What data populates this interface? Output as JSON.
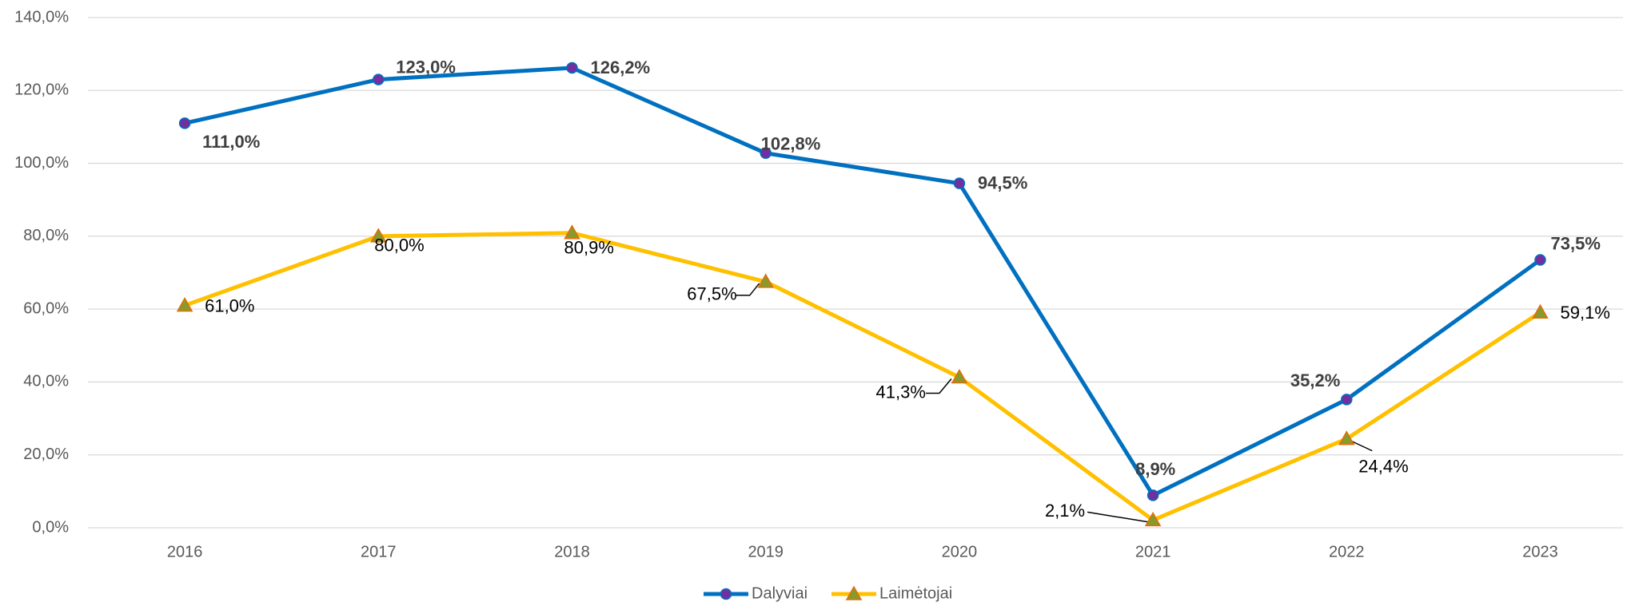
{
  "chart_data": {
    "type": "line",
    "categories": [
      "2016",
      "2017",
      "2018",
      "2019",
      "2020",
      "2021",
      "2022",
      "2023"
    ],
    "series": [
      {
        "name": "Dalyviai",
        "color": "#0070c0",
        "marker_color": "#7030a0",
        "marker": "circle",
        "values": [
          111.0,
          123.0,
          126.2,
          102.8,
          94.5,
          8.9,
          35.2,
          73.5
        ],
        "value_labels": [
          "111,0%",
          "123,0%",
          "126,2%",
          "102,8%",
          "94,5%",
          "8,9%",
          "35,2%",
          "73,5%"
        ]
      },
      {
        "name": "Laimėtojai",
        "color": "#ffc000",
        "marker_color": "#8a9a2a",
        "marker": "triangle",
        "values": [
          61.0,
          80.0,
          80.9,
          67.5,
          41.3,
          2.1,
          24.4,
          59.1
        ],
        "value_labels": [
          "61,0%",
          "80,0%",
          "80,9%",
          "67,5%",
          "41,3%",
          "2,1%",
          "24,4%",
          "59,1%"
        ]
      }
    ],
    "ylim": [
      0,
      140
    ],
    "yticks": [
      {
        "value": 0,
        "label": "0,0%"
      },
      {
        "value": 20,
        "label": "20,0%"
      },
      {
        "value": 40,
        "label": "40,0%"
      },
      {
        "value": 60,
        "label": "60,0%"
      },
      {
        "value": 80,
        "label": "80,0%"
      },
      {
        "value": 100,
        "label": "100,0%"
      },
      {
        "value": 120,
        "label": "120,0%"
      },
      {
        "value": 140,
        "label": "140,0%"
      }
    ],
    "grid": true,
    "legend": "bottom"
  }
}
